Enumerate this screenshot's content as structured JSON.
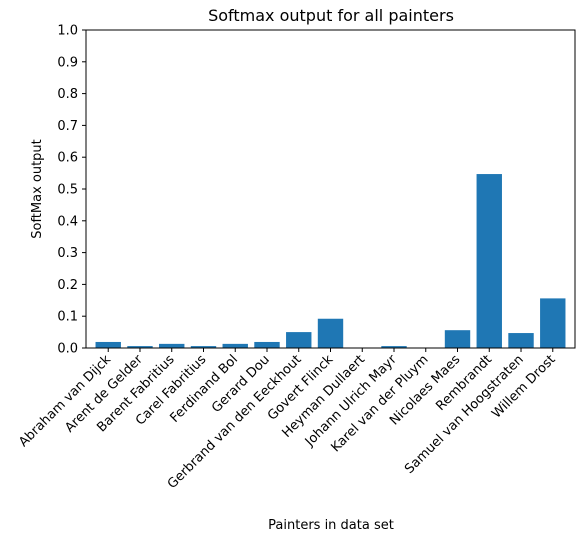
{
  "chart_data": {
    "type": "bar",
    "title": "Softmax output for all painters",
    "xlabel": "Painters in data set",
    "ylabel": "SoftMax output",
    "ylim": [
      0,
      1.0
    ],
    "yticks": [
      "0.0",
      "0.1",
      "0.2",
      "0.3",
      "0.4",
      "0.5",
      "0.6",
      "0.7",
      "0.8",
      "0.9",
      "1.0"
    ],
    "grid": false,
    "bar_color": "#1f77b4",
    "categories": [
      "Abraham van Dijck",
      "Arent de Gelder",
      "Barent Fabritius",
      "Carel Fabritius",
      "Ferdinand Bol",
      "Gerard Dou",
      "Gerbrand van den Eeckhout",
      "Govert Flinck",
      "Heyman Dullaert",
      "Johann Ulrich Mayr",
      "Karel van der Pluym",
      "Nicolaes Maes",
      "Rembrandt",
      "Samuel van Hoogstraten",
      "Willem Drost"
    ],
    "values": [
      0.019,
      0.006,
      0.013,
      0.006,
      0.013,
      0.019,
      0.05,
      0.092,
      0.001,
      0.006,
      0.001,
      0.056,
      0.547,
      0.047,
      0.156
    ]
  }
}
